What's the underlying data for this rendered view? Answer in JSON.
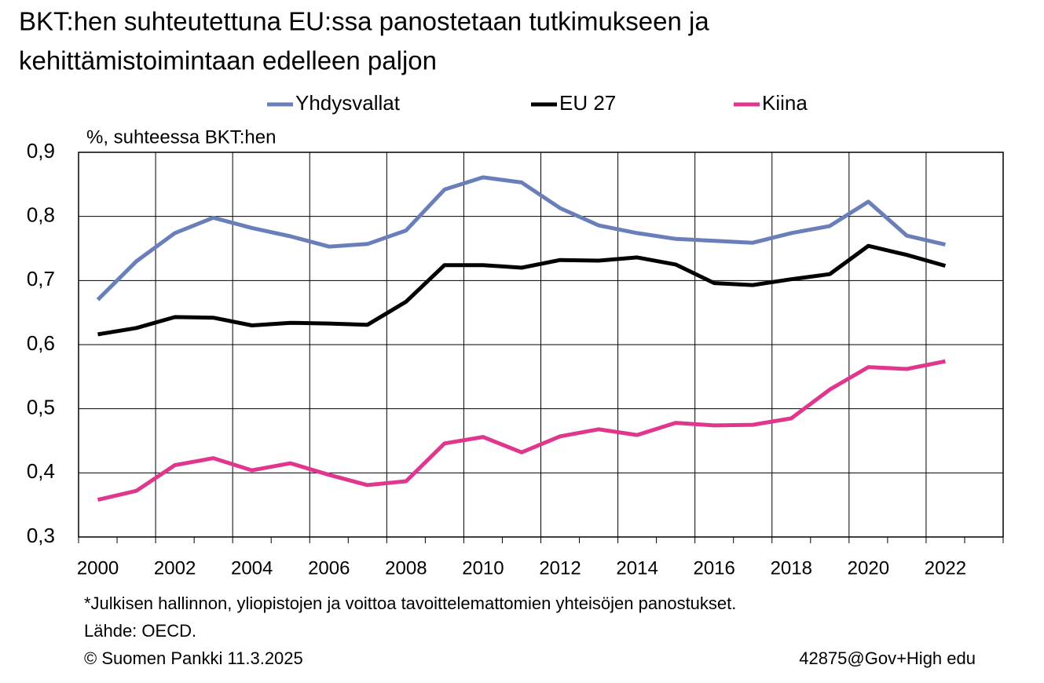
{
  "chart_data": {
    "type": "line",
    "title": [
      "BKT:hen suhteutettuna EU:ssa panostetaan tutkimukseen ja",
      "kehittämistoimintaan edelleen paljon"
    ],
    "y_label": "%, suhteessa BKT:hen",
    "categories": [
      "2000",
      null,
      "2002",
      null,
      "2004",
      null,
      "2006",
      null,
      "2008",
      null,
      "2010",
      null,
      "2012",
      null,
      "2014",
      null,
      "2016",
      null,
      "2018",
      null,
      "2020",
      null,
      "2022",
      null
    ],
    "series": [
      {
        "name": "Yhdysvallat",
        "color": "#6a7fba",
        "values": [
          0.67,
          0.73,
          0.774,
          0.798,
          0.782,
          0.769,
          0.753,
          0.757,
          0.778,
          0.842,
          0.861,
          0.853,
          0.813,
          0.786,
          0.774,
          0.765,
          0.762,
          0.759,
          0.774,
          0.785,
          0.823,
          0.77,
          0.756,
          null
        ]
      },
      {
        "name": "EU 27",
        "color": "#000000",
        "values": [
          0.616,
          0.626,
          0.643,
          0.642,
          0.63,
          0.634,
          0.633,
          0.631,
          0.667,
          0.724,
          0.724,
          0.72,
          0.732,
          0.731,
          0.736,
          0.725,
          0.696,
          0.693,
          0.702,
          0.71,
          0.754,
          0.74,
          0.723,
          null
        ]
      },
      {
        "name": "Kiina",
        "color": "#e0368d",
        "values": [
          0.358,
          0.372,
          0.412,
          0.423,
          0.404,
          0.415,
          0.397,
          0.381,
          0.387,
          0.446,
          0.456,
          0.432,
          0.457,
          0.468,
          0.459,
          0.478,
          0.474,
          0.475,
          0.485,
          0.53,
          0.565,
          0.562,
          0.574,
          null
        ]
      }
    ],
    "ylim": [
      0.3,
      0.9
    ],
    "yticks": [
      {
        "value": 0.3,
        "label": "0,3"
      },
      {
        "value": 0.4,
        "label": "0,4"
      },
      {
        "value": 0.5,
        "label": "0,5"
      },
      {
        "value": 0.6,
        "label": "0,6"
      },
      {
        "value": 0.7,
        "label": "0,7"
      },
      {
        "value": 0.8,
        "label": "0,8"
      },
      {
        "value": 0.9,
        "label": "0,9"
      }
    ],
    "grid": true,
    "legend": "top",
    "notes": [
      "*Julkisen hallinnon, yliopistojen ja voittoa tavoittelemattomien yhteisöjen panostukset.",
      "Lähde: OECD.",
      "© Suomen Pankki 11.3.2025"
    ],
    "code": "42875@Gov+High edu"
  }
}
